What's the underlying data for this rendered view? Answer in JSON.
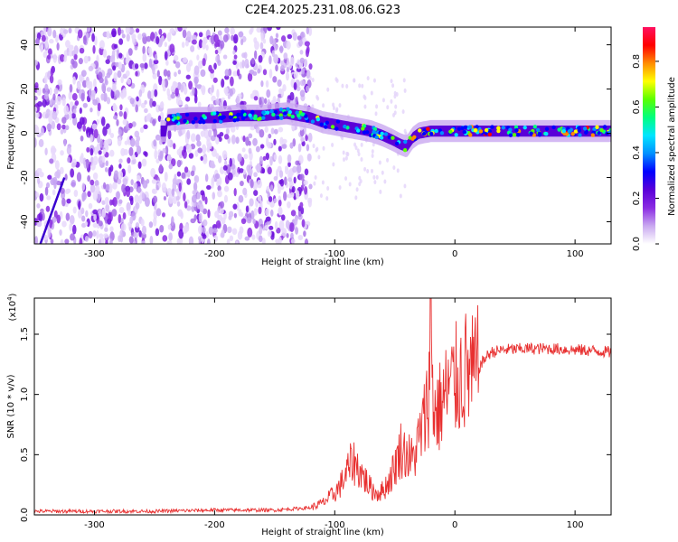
{
  "title": "C2E4.2025.231.08.06.G23",
  "chart_data": [
    {
      "type": "heatmap",
      "xlabel": "Height of straight line (km)",
      "ylabel": "Frequency (Hz)",
      "xlim": [
        -350,
        130
      ],
      "ylim": [
        -50,
        48
      ],
      "xticks": [
        -300,
        -200,
        -100,
        0,
        100
      ],
      "yticks": [
        -40,
        -20,
        0,
        20,
        40
      ],
      "colorbar": {
        "label": "Normalized spectral amplitude",
        "range": [
          0,
          0.95
        ],
        "ticks": [
          "0.0",
          "0.2",
          "0.4",
          "0.6",
          "0.8"
        ],
        "colors": [
          "#ffffff",
          "#c9a8f0",
          "#8a2be2",
          "#5a00d8",
          "#0000ff",
          "#0090ff",
          "#00e5ff",
          "#00ff7f",
          "#5aff00",
          "#ffff00",
          "#ff8c00",
          "#ff0000",
          "#ff1060"
        ]
      },
      "trace": {
        "name": "",
        "x": [
          -240,
          -220,
          -200,
          -180,
          -160,
          -140,
          -130,
          -120,
          -110,
          -100,
          -90,
          -80,
          -70,
          -60,
          -52,
          -45,
          -40,
          -35,
          -30,
          -20,
          -10,
          0,
          20,
          50,
          80,
          100,
          130
        ],
        "y": [
          6,
          7,
          7,
          8,
          8,
          9,
          8,
          7,
          5,
          4,
          3,
          2,
          1,
          -1,
          -3,
          -5,
          -6,
          -2,
          0,
          1,
          1,
          1,
          1,
          1,
          1,
          1,
          1
        ]
      }
    },
    {
      "type": "line",
      "xlabel": "Height of straight line (km)",
      "ylabel": "SNR (10 * v/v)",
      "yscale_label": "(x10",
      "yscale_exp": "4",
      "yscale_close": ")",
      "xlim": [
        -350,
        130
      ],
      "ylim": [
        0,
        1.8
      ],
      "xticks": [
        -300,
        -200,
        -100,
        0,
        100
      ],
      "yticks": [
        "0.0",
        "0.5",
        "1.0",
        "1.5"
      ],
      "color": "#e83030",
      "series": [
        {
          "name": "",
          "x": [
            -350,
            -300,
            -250,
            -200,
            -150,
            -120,
            -110,
            -100,
            -95,
            -90,
            -85,
            -80,
            -75,
            -70,
            -65,
            -60,
            -55,
            -50,
            -45,
            -40,
            -35,
            -30,
            -25,
            -22,
            -20,
            -18,
            -15,
            -10,
            -5,
            0,
            5,
            10,
            15,
            20,
            25,
            30,
            40,
            60,
            80,
            100,
            120,
            130
          ],
          "y": [
            0.03,
            0.03,
            0.03,
            0.04,
            0.04,
            0.06,
            0.1,
            0.18,
            0.25,
            0.35,
            0.45,
            0.38,
            0.3,
            0.22,
            0.18,
            0.2,
            0.28,
            0.4,
            0.55,
            0.5,
            0.45,
            0.62,
            0.8,
            1.0,
            1.75,
            0.9,
            0.85,
            0.95,
            1.05,
            1.1,
            1.15,
            1.2,
            1.15,
            1.22,
            1.3,
            1.35,
            1.37,
            1.38,
            1.38,
            1.37,
            1.36,
            1.35
          ]
        }
      ]
    }
  ]
}
